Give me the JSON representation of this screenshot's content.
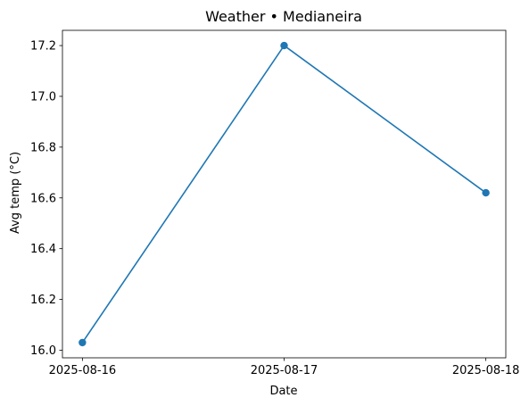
{
  "chart_data": {
    "type": "line",
    "title": "Weather • Medianeira",
    "xlabel": "Date",
    "ylabel": "Avg temp (°C)",
    "categories": [
      "2025-08-16",
      "2025-08-17",
      "2025-08-18"
    ],
    "series": [
      {
        "values": [
          16.03,
          17.2,
          16.62
        ],
        "color": "#1f77b4",
        "marker": "circle"
      }
    ],
    "ylim": [
      15.97,
      17.26
    ],
    "yticks": [
      16.0,
      16.2,
      16.4,
      16.6,
      16.8,
      17.0,
      17.2
    ],
    "ytick_labels": [
      "16.0",
      "16.2",
      "16.4",
      "16.6",
      "16.8",
      "17.0",
      "17.2"
    ],
    "grid": false,
    "legend": "none"
  }
}
